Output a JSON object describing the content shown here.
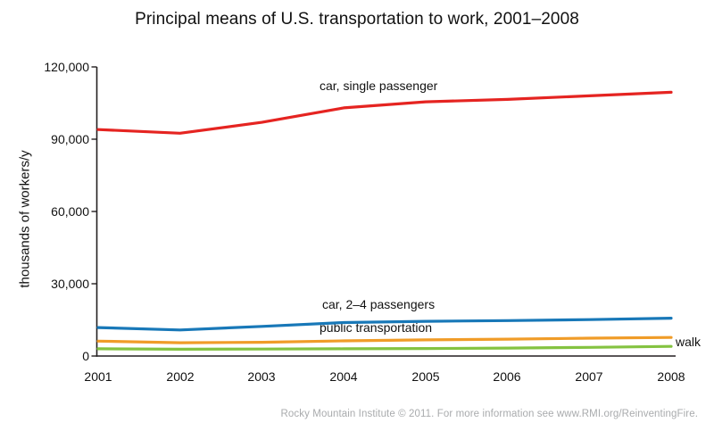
{
  "footer": {
    "credit": "Rocky Mountain Institute © 2011. For more information see www.RMI.org/ReinventingFire."
  },
  "chart_data": {
    "type": "line",
    "title": "Principal means of  U.S. transportation to work, 2001–2008",
    "xlabel": "",
    "ylabel": "thousands of workers/y",
    "x": [
      2001,
      2002,
      2003,
      2004,
      2005,
      2006,
      2007,
      2008
    ],
    "ylim": [
      0,
      120000
    ],
    "yticks": [
      0,
      30000,
      60000,
      90000,
      120000
    ],
    "ytick_labels": [
      "0",
      "30,000",
      "60,000",
      "90,000",
      "120,000"
    ],
    "grid": false,
    "legend_position": "inline-labels-next-to-lines",
    "axis_color": "#231f20",
    "series": [
      {
        "name": "car, single passenger",
        "color": "#e52421",
        "values": [
          94000,
          92500,
          97000,
          103000,
          105500,
          106500,
          108000,
          109500
        ]
      },
      {
        "name": "car, 2–4 passengers",
        "color": "#1878b8",
        "values": [
          11800,
          10800,
          12300,
          13900,
          14400,
          14700,
          15100,
          15700
        ]
      },
      {
        "name": "public transportation",
        "color": "#f09c28",
        "values": [
          6200,
          5500,
          5700,
          6300,
          6700,
          7000,
          7400,
          7700
        ]
      },
      {
        "name": "walk",
        "color": "#84c341",
        "values": [
          3000,
          2800,
          2900,
          3000,
          3100,
          3300,
          3600,
          4000
        ]
      }
    ]
  }
}
